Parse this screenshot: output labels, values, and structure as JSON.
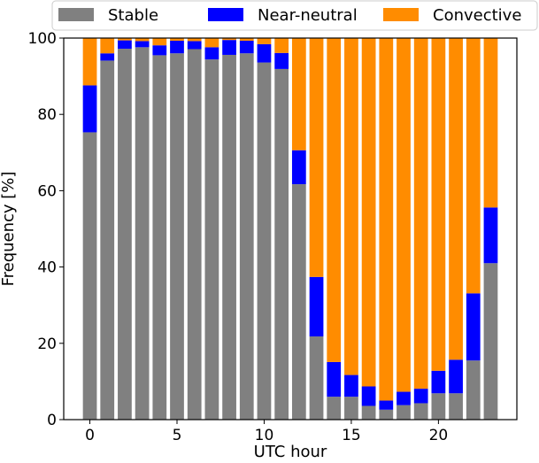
{
  "chart_data": {
    "type": "bar",
    "stacked": true,
    "xlabel": "UTC hour",
    "ylabel": "Frequency [%]",
    "xlim": [
      -1.5,
      24.5
    ],
    "ylim": [
      0,
      100
    ],
    "xticks": [
      0,
      5,
      10,
      15,
      20
    ],
    "yticks": [
      0,
      20,
      40,
      60,
      80,
      100
    ],
    "legend_position": "top",
    "x": [
      0,
      1,
      2,
      3,
      4,
      5,
      6,
      7,
      8,
      9,
      10,
      11,
      12,
      13,
      14,
      15,
      16,
      17,
      18,
      19,
      20,
      21,
      22,
      23
    ],
    "series": [
      {
        "name": "Stable",
        "color": "#808080",
        "values": [
          75.3,
          94.1,
          97.2,
          97.6,
          95.5,
          96.0,
          97.1,
          94.4,
          95.6,
          96.0,
          93.6,
          91.9,
          61.7,
          21.8,
          6.0,
          6.0,
          3.6,
          2.6,
          3.8,
          4.3,
          6.9,
          6.9,
          15.5,
          41.0
        ]
      },
      {
        "name": "Near-neutral",
        "color": "#0000ff",
        "values": [
          12.3,
          1.9,
          2.2,
          1.6,
          2.6,
          3.3,
          2.1,
          3.2,
          3.9,
          3.3,
          4.8,
          4.2,
          8.9,
          15.6,
          9.1,
          5.7,
          5.1,
          2.4,
          3.5,
          3.8,
          5.9,
          8.8,
          17.6,
          14.6
        ]
      },
      {
        "name": "Convective",
        "color": "#ff8c00",
        "values": [
          12.4,
          4.0,
          0.6,
          0.8,
          1.9,
          0.7,
          0.8,
          2.4,
          0.5,
          0.7,
          1.6,
          3.9,
          29.4,
          62.6,
          84.9,
          88.3,
          91.3,
          95.0,
          92.7,
          91.9,
          87.2,
          84.3,
          66.9,
          44.4
        ]
      }
    ]
  }
}
